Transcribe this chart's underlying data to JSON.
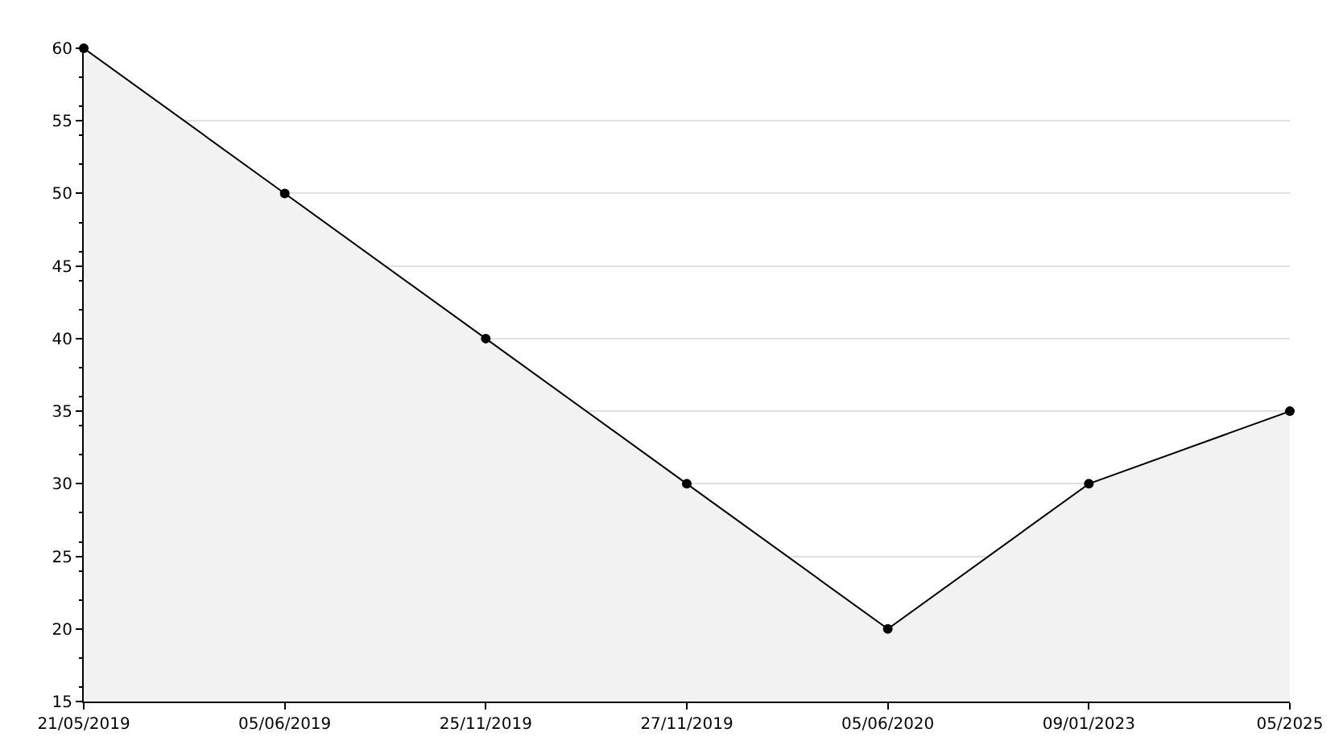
{
  "chart_data": {
    "type": "area",
    "categories": [
      "21/05/2019",
      "05/06/2019",
      "25/11/2019",
      "27/11/2019",
      "05/06/2020",
      "09/01/2023",
      "05/2025"
    ],
    "series": [
      {
        "color": "#000000",
        "values": [
          60,
          50,
          40,
          30,
          20,
          30,
          35
        ]
      }
    ],
    "ylim": [
      15,
      60
    ],
    "yticks": [
      15,
      20,
      25,
      30,
      35,
      40,
      45,
      50,
      55,
      60
    ],
    "grid": "y",
    "legend": false,
    "marker": "circle",
    "line_style": "solid"
  }
}
